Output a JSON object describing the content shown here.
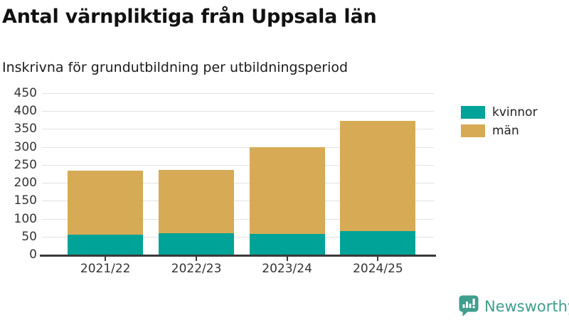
{
  "header": {
    "title": "Antal värnpliktiga från Uppsala län",
    "subtitle": "Inskrivna för grundutbildning per utbildningsperiod"
  },
  "chart_data": {
    "type": "bar",
    "stacked": true,
    "categories": [
      "2021/22",
      "2022/23",
      "2023/24",
      "2024/25"
    ],
    "series": [
      {
        "name": "kvinnor",
        "color": "#00a397",
        "values": [
          56,
          59,
          58,
          65
        ]
      },
      {
        "name": "män",
        "color": "#d7aa55",
        "values": [
          178,
          177,
          242,
          307
        ]
      }
    ],
    "stack_totals": [
      234,
      236,
      300,
      372
    ],
    "xlabel": "",
    "ylabel": "",
    "ylim": [
      0,
      450
    ],
    "ytick_step": 50,
    "ytick_labels": [
      "0",
      "50",
      "100",
      "150",
      "200",
      "250",
      "300",
      "350",
      "400",
      "450"
    ],
    "grid": true,
    "legend_position": "right"
  },
  "legend": {
    "items": [
      {
        "label": "kvinnor",
        "color": "#00a397"
      },
      {
        "label": "män",
        "color": "#d7aa55"
      }
    ]
  },
  "branding": {
    "name": "Newsworthy",
    "color": "#3f9e8e",
    "icon": "newsworthy-bar-chart-bubble-icon"
  },
  "colors": {
    "background": "#ffffff",
    "gridline": "#e2e2e2",
    "axis": "#3a3a3a",
    "axis_text": "#333333",
    "title_text": "#111111"
  }
}
